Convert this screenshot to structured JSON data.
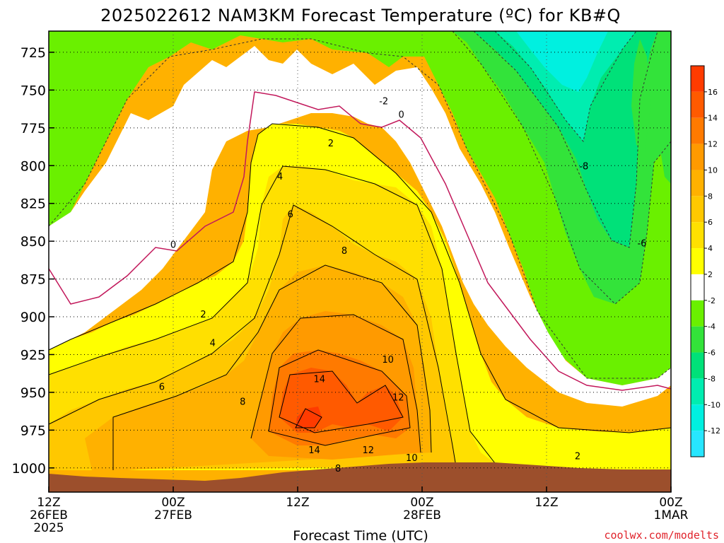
{
  "chart_data": {
    "type": "heatmap",
    "title": "2025022612 NAM3KM Forecast Temperature (ºC) for KB#Q",
    "xlabel": "Forecast Time (UTC)",
    "ylabel": "",
    "y_ticks": [
      "725",
      "750",
      "775",
      "800",
      "825",
      "850",
      "875",
      "900",
      "925",
      "950",
      "975",
      "1000"
    ],
    "y_tick_values": [
      725,
      750,
      775,
      800,
      825,
      850,
      875,
      900,
      925,
      950,
      975,
      1000
    ],
    "ylim": [
      711,
      1016
    ],
    "y_axis_inverted": true,
    "x_ticks": [
      {
        "hour": 0,
        "lines": [
          "12Z",
          "26FEB",
          "2025"
        ]
      },
      {
        "hour": 12,
        "lines": [
          "00Z",
          "27FEB"
        ]
      },
      {
        "hour": 24,
        "lines": [
          "12Z"
        ]
      },
      {
        "hour": 36,
        "lines": [
          "00Z",
          "28FEB"
        ]
      },
      {
        "hour": 48,
        "lines": [
          "12Z"
        ]
      },
      {
        "hour": 60,
        "lines": [
          "00Z",
          "1MAR"
        ]
      }
    ],
    "xlim": [
      0,
      60
    ],
    "grid": true,
    "colorbar": {
      "tick_labels": [
        "16",
        "14",
        "12",
        "10",
        "8",
        "6",
        "4",
        "2",
        "-2",
        "-4",
        "-6",
        "-8",
        "-10",
        "-12"
      ],
      "boundaries": [
        18,
        16,
        14,
        12,
        10,
        8,
        6,
        4,
        2,
        -2,
        -4,
        -6,
        -8,
        -10,
        -12,
        -14
      ],
      "colors": [
        "#ff3b00",
        "#ff5a00",
        "#ff7a00",
        "#ff9a00",
        "#ffb100",
        "#ffc800",
        "#ffe000",
        "#ffff00",
        "#ffffff",
        "#6af000",
        "#33e33a",
        "#00e179",
        "#00edb0",
        "#00f0e0",
        "#27e6ff"
      ]
    },
    "contour_labels": [
      {
        "text": "-2",
        "hour": 32.3,
        "p": 757
      },
      {
        "text": "0",
        "hour": 34.0,
        "p": 766
      },
      {
        "text": "0",
        "hour": 12.0,
        "p": 852
      },
      {
        "text": "2",
        "hour": 27.2,
        "p": 785
      },
      {
        "text": "4",
        "hour": 22.3,
        "p": 807
      },
      {
        "text": "6",
        "hour": 23.3,
        "p": 832
      },
      {
        "text": "8",
        "hour": 28.5,
        "p": 856
      },
      {
        "text": "2",
        "hour": 14.9,
        "p": 898
      },
      {
        "text": "4",
        "hour": 15.8,
        "p": 917
      },
      {
        "text": "6",
        "hour": 10.9,
        "p": 946
      },
      {
        "text": "8",
        "hour": 18.7,
        "p": 956
      },
      {
        "text": "10",
        "hour": 32.7,
        "p": 928
      },
      {
        "text": "14",
        "hour": 26.1,
        "p": 941
      },
      {
        "text": "12",
        "hour": 33.7,
        "p": 953
      },
      {
        "text": "14",
        "hour": 25.6,
        "p": 988
      },
      {
        "text": "12",
        "hour": 30.8,
        "p": 988
      },
      {
        "text": "10",
        "hour": 35.0,
        "p": 993
      },
      {
        "text": "8",
        "hour": 27.9,
        "p": 1000
      },
      {
        "text": "-8",
        "hour": 51.6,
        "p": 800
      },
      {
        "text": "-6",
        "hour": 57.2,
        "p": 851
      },
      {
        "text": "2",
        "hour": 51.0,
        "p": 992
      }
    ]
  },
  "credit": "coolwx.com/modelts"
}
